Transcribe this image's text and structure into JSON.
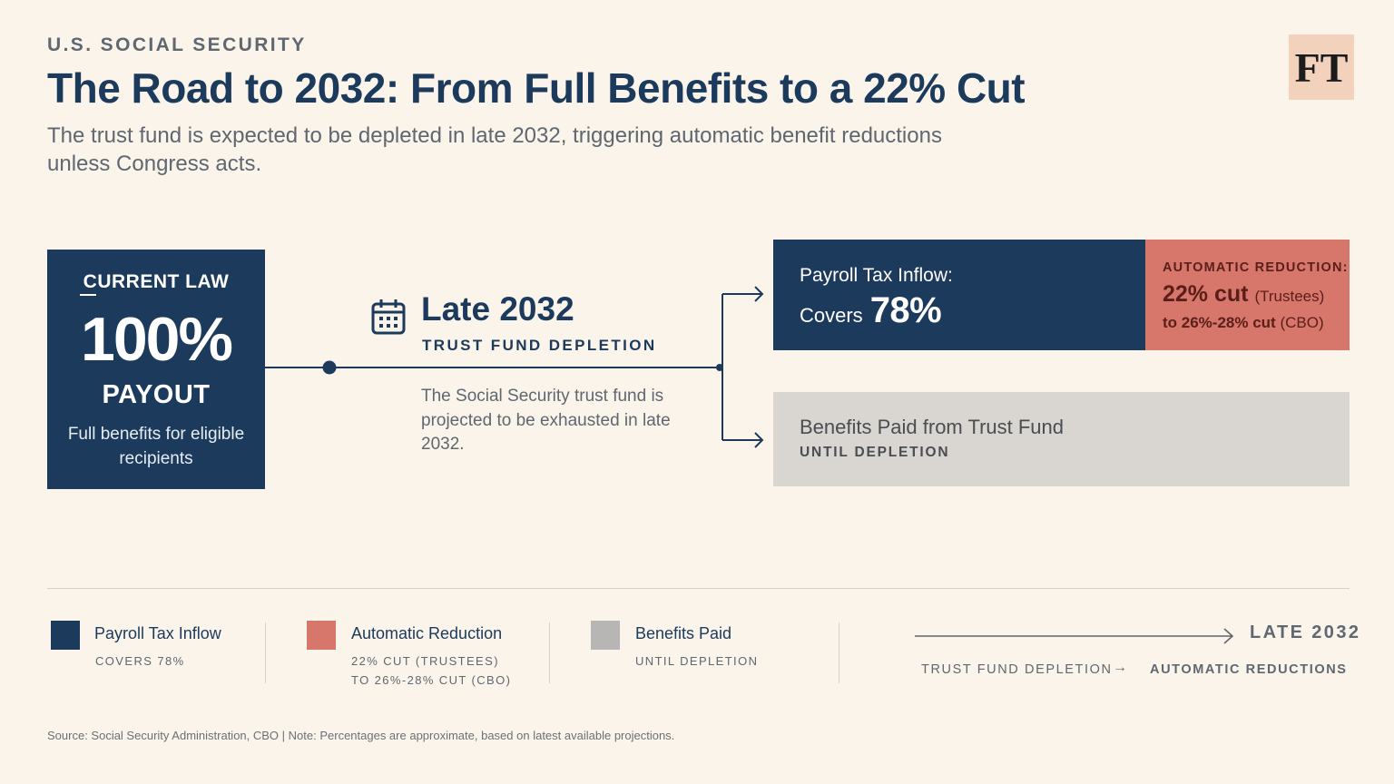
{
  "header": {
    "kicker": "U.S. SOCIAL SECURITY",
    "title": "The Road to 2032: From Full Benefits to a 22% Cut",
    "subtitle": "The trust fund is expected to be depleted in late 2032, triggering automatic benefit reductions unless Congress acts.",
    "logo": "FT"
  },
  "current_law": {
    "label": "CURRENT LAW",
    "value": "100%",
    "payout": "PAYOUT",
    "description": "Full benefits for eligible recipients"
  },
  "event": {
    "icon": "calendar-icon",
    "year": "Late 2032",
    "label": "TRUST FUND DEPLETION",
    "description": "The Social Security trust fund is projected to be exhausted in late 2032."
  },
  "inflow": {
    "line1": "Payroll Tax Inflow:",
    "covers_text": "Covers",
    "covers_value": "78%",
    "share": 0.78
  },
  "reduction": {
    "label": "AUTOMATIC REDUCTION:",
    "main": "22% cut",
    "main_note": "(Trustees)",
    "range": "to 26%-28% cut",
    "range_note": "(CBO)"
  },
  "trust": {
    "title": "Benefits Paid from Trust Fund",
    "subtitle": "UNTIL DEPLETION"
  },
  "legend": [
    {
      "title": "Payroll Tax Inflow",
      "sub": "COVERS 78%",
      "color": "#1b3a5c"
    },
    {
      "title": "Automatic Reduction",
      "sub": "22% CUT (TRUSTEES) TO 26%-28% CUT (CBO)",
      "color": "#d7766a"
    },
    {
      "title": "Benefits Paid",
      "sub": "UNTIL DEPLETION",
      "color": "#b8b6b4"
    }
  ],
  "timeline": {
    "year": "LATE 2032",
    "from": "TRUST FUND DEPLETION",
    "arrow": "→",
    "to": "AUTOMATIC REDUCTIONS"
  },
  "source": "Source: Social Security Administration, CBO  |  Note: Percentages are approximate, based on latest available projections.",
  "colors": {
    "navy": "#1b3a5c",
    "coral": "#d7766a",
    "grey": "#d9d5d0",
    "background": "#fbf4ea"
  }
}
